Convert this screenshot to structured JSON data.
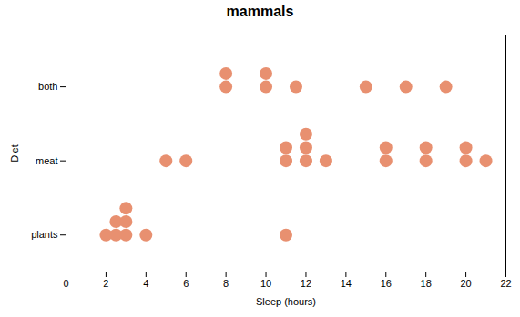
{
  "chart_data": {
    "type": "dot",
    "title": "mammals",
    "xlabel": "Sleep (hours)",
    "ylabel": "Diet",
    "categories": [
      "plants",
      "meat",
      "both"
    ],
    "xlim": [
      0,
      22
    ],
    "xticks": [
      0,
      2,
      4,
      6,
      8,
      10,
      12,
      14,
      16,
      18,
      20,
      22
    ],
    "color": "#e89070",
    "dots": [
      {
        "category": "plants",
        "x": 2.0,
        "count": 1
      },
      {
        "category": "plants",
        "x": 2.5,
        "count": 2
      },
      {
        "category": "plants",
        "x": 3.0,
        "count": 3
      },
      {
        "category": "plants",
        "x": 4.0,
        "count": 1
      },
      {
        "category": "plants",
        "x": 11.0,
        "count": 1
      },
      {
        "category": "meat",
        "x": 5.0,
        "count": 1
      },
      {
        "category": "meat",
        "x": 6.0,
        "count": 1
      },
      {
        "category": "meat",
        "x": 11.0,
        "count": 2
      },
      {
        "category": "meat",
        "x": 12.0,
        "count": 3
      },
      {
        "category": "meat",
        "x": 13.0,
        "count": 1
      },
      {
        "category": "meat",
        "x": 16.0,
        "count": 2
      },
      {
        "category": "meat",
        "x": 18.0,
        "count": 2
      },
      {
        "category": "meat",
        "x": 20.0,
        "count": 2
      },
      {
        "category": "meat",
        "x": 21.0,
        "count": 1
      },
      {
        "category": "both",
        "x": 8.0,
        "count": 2
      },
      {
        "category": "both",
        "x": 10.0,
        "count": 2
      },
      {
        "category": "both",
        "x": 11.5,
        "count": 1
      },
      {
        "category": "both",
        "x": 15.0,
        "count": 1
      },
      {
        "category": "both",
        "x": 17.0,
        "count": 1
      },
      {
        "category": "both",
        "x": 19.0,
        "count": 1
      }
    ]
  }
}
